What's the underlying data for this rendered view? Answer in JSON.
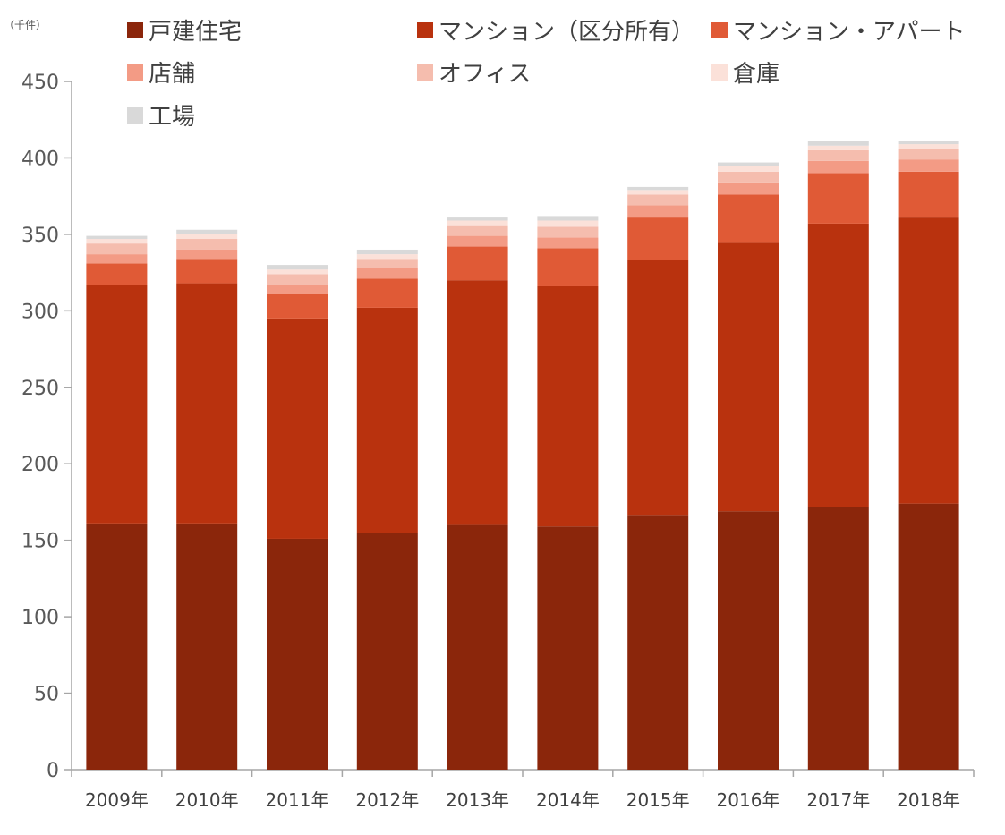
{
  "chart_data": {
    "type": "bar",
    "stacked": true,
    "unit_label": "（千件）",
    "categories": [
      "2009年",
      "2010年",
      "2011年",
      "2012年",
      "2013年",
      "2014年",
      "2015年",
      "2016年",
      "2017年",
      "2018年"
    ],
    "ylim": [
      0,
      450
    ],
    "yticks": [
      0,
      50,
      100,
      150,
      200,
      250,
      300,
      350,
      400,
      450
    ],
    "grid": false,
    "legend_position": "top",
    "series": [
      {
        "name": "戸建住宅",
        "color": "#8B260B",
        "values": [
          161,
          161,
          151,
          155,
          160,
          159,
          166,
          169,
          172,
          174
        ]
      },
      {
        "name": "マンション（区分所有）",
        "color": "#B9320E",
        "values": [
          156,
          157,
          144,
          147,
          160,
          157,
          167,
          176,
          185,
          187
        ]
      },
      {
        "name": "マンション・アパート",
        "color": "#E05A36",
        "values": [
          14,
          16,
          16,
          19,
          22,
          25,
          28,
          31,
          33,
          30
        ]
      },
      {
        "name": "店舗",
        "color": "#F39B85",
        "values": [
          6,
          6,
          6,
          7,
          7,
          7,
          8,
          8,
          8,
          8
        ]
      },
      {
        "name": "オフィス",
        "color": "#F5BDAE",
        "values": [
          7,
          7,
          7,
          6,
          7,
          7,
          7,
          7,
          7,
          7
        ]
      },
      {
        "name": "倉庫",
        "color": "#FBE1D9",
        "values": [
          3,
          3,
          3,
          3,
          3,
          4,
          3,
          4,
          3,
          3
        ]
      },
      {
        "name": "工場",
        "color": "#D9D9D9",
        "values": [
          2,
          3,
          3,
          3,
          2,
          3,
          2,
          2,
          3,
          2
        ]
      }
    ]
  }
}
